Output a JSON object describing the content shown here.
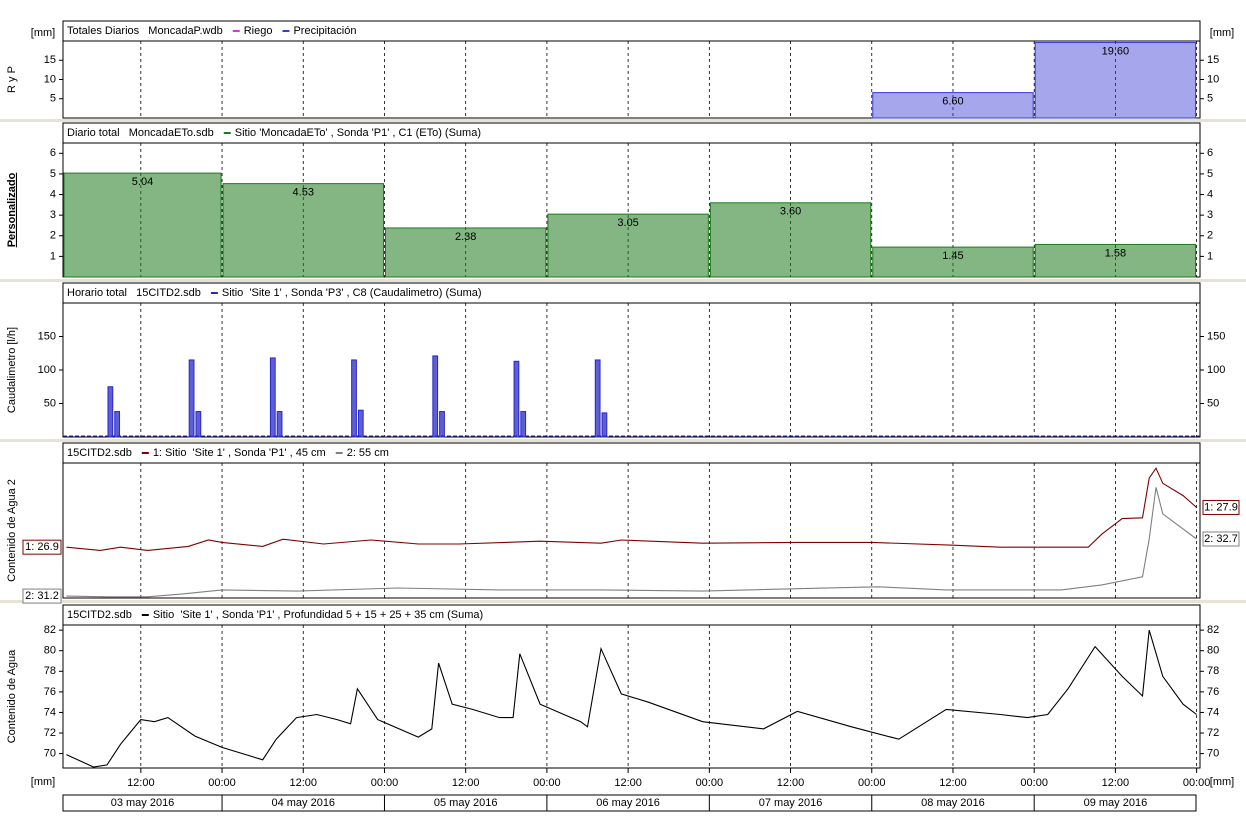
{
  "time_axis": {
    "xlim": [
      "2016-05-03T00:30",
      "2016-05-10T00:30"
    ],
    "xticks": [
      {
        "value": "2016-05-03T12:00",
        "label": "12:00"
      },
      {
        "value": "2016-05-04T00:00",
        "label": "00:00"
      },
      {
        "value": "2016-05-04T12:00",
        "label": "12:00"
      },
      {
        "value": "2016-05-05T00:00",
        "label": "00:00"
      },
      {
        "value": "2016-05-05T12:00",
        "label": "12:00"
      },
      {
        "value": "2016-05-06T00:00",
        "label": "00:00"
      },
      {
        "value": "2016-05-06T12:00",
        "label": "12:00"
      },
      {
        "value": "2016-05-07T00:00",
        "label": "00:00"
      },
      {
        "value": "2016-05-07T12:00",
        "label": "12:00"
      },
      {
        "value": "2016-05-08T00:00",
        "label": "00:00"
      },
      {
        "value": "2016-05-08T12:00",
        "label": "12:00"
      },
      {
        "value": "2016-05-09T00:00",
        "label": "00:00"
      },
      {
        "value": "2016-05-09T12:00",
        "label": "12:00"
      },
      {
        "value": "2016-05-10T00:00",
        "label": "00:00"
      }
    ],
    "days": [
      "03 may 2016",
      "04 may 2016",
      "05 may 2016",
      "06 may 2016",
      "07 may 2016",
      "08 may 2016",
      "09 may 2016"
    ],
    "unit": "[mm]"
  },
  "chart_data": [
    {
      "type": "bar",
      "title": "Totales Diarios   MoncadaP.wdb",
      "ylabel": "R y P",
      "unit": "[mm]",
      "x": [
        "2016-05-03T00:00",
        "2016-05-04T00:00",
        "2016-05-05T00:00",
        "2016-05-06T00:00",
        "2016-05-07T00:00",
        "2016-05-08T00:00",
        "2016-05-09T00:00"
      ],
      "series": [
        {
          "name": "Riego",
          "color": "#e030e0",
          "values": [
            null,
            null,
            null,
            null,
            null,
            null,
            null
          ]
        },
        {
          "name": "Precipitación",
          "color": "#3a3ad8",
          "values": [
            null,
            null,
            null,
            null,
            null,
            6.6,
            19.6
          ],
          "value_labels": [
            null,
            null,
            null,
            null,
            null,
            "6.60",
            "19.60"
          ]
        }
      ],
      "ylim": [
        0,
        20
      ],
      "yticks": [
        5,
        10,
        15
      ]
    },
    {
      "type": "bar",
      "title": "Diario total   MoncadaETo.sdb",
      "ylabel": "Personalizado",
      "x": [
        "2016-05-03T00:00",
        "2016-05-04T00:00",
        "2016-05-05T00:00",
        "2016-05-06T00:00",
        "2016-05-07T00:00",
        "2016-05-08T00:00",
        "2016-05-09T00:00"
      ],
      "series": [
        {
          "name": "Sitio 'MoncadaETo' , Sonda 'P1' , C1 (ETo) (Suma)",
          "color": "#1e7a1e",
          "values": [
            5.04,
            4.53,
            2.38,
            3.05,
            3.6,
            1.45,
            1.58
          ],
          "value_labels": [
            "5.04",
            "4.53",
            "2.38",
            "3.05",
            "3.60",
            "1.45",
            "1.58"
          ]
        }
      ],
      "ylim": [
        0,
        6.5
      ],
      "yticks": [
        1,
        2,
        3,
        4,
        5,
        6
      ]
    },
    {
      "type": "bar",
      "title": "Horario total   15CITD2.sdb",
      "ylabel": "Caudalimetro [l/h]",
      "x": [
        "2016-05-03T07:00",
        "2016-05-03T08:00",
        "2016-05-03T19:00",
        "2016-05-03T20:00",
        "2016-05-04T07:00",
        "2016-05-04T08:00",
        "2016-05-04T19:00",
        "2016-05-04T20:00",
        "2016-05-05T07:00",
        "2016-05-05T08:00",
        "2016-05-05T19:00",
        "2016-05-05T20:00",
        "2016-05-06T07:00",
        "2016-05-06T08:00"
      ],
      "series": [
        {
          "name": "Sitio  'Site 1' , Sonda 'P3' , C8 (Caudalimetro) (Suma)",
          "color": "#2828c8",
          "values": [
            75,
            38,
            115,
            38,
            118,
            38,
            115,
            40,
            121,
            38,
            113,
            38,
            115,
            36
          ]
        }
      ],
      "ylim": [
        0,
        200
      ],
      "yticks": [
        50,
        100,
        150
      ]
    },
    {
      "type": "line",
      "title": "15CITD2.sdb",
      "ylabel": "Contenido de Agua 2",
      "series": [
        {
          "name": "1: Sitio  'Site 1' , Sonda 'P1' , 45 cm",
          "color": "#800000",
          "start_label": "1: 26.9",
          "end_label": "1: 27.9",
          "ylim": [
            25.6,
            29.0
          ],
          "x": [
            "2016-05-03T01:00",
            "2016-05-03T06:00",
            "2016-05-03T09:00",
            "2016-05-03T13:00",
            "2016-05-03T19:00",
            "2016-05-03T22:00",
            "2016-05-04T00:00",
            "2016-05-04T06:00",
            "2016-05-04T09:00",
            "2016-05-04T15:00",
            "2016-05-04T22:00",
            "2016-05-05T05:00",
            "2016-05-05T11:00",
            "2016-05-05T23:00",
            "2016-05-06T08:00",
            "2016-05-06T11:00",
            "2016-05-06T23:00",
            "2016-05-07T13:00",
            "2016-05-08T00:00",
            "2016-05-08T12:00",
            "2016-05-08T19:00",
            "2016-05-09T08:00",
            "2016-05-09T10:00",
            "2016-05-09T13:00",
            "2016-05-09T16:00",
            "2016-05-09T17:00",
            "2016-05-09T18:00",
            "2016-05-09T19:00",
            "2016-05-09T22:00",
            "2016-05-10T00:00"
          ],
          "values": [
            26.88,
            26.8,
            26.88,
            26.8,
            26.9,
            27.06,
            27.0,
            26.9,
            27.08,
            26.96,
            27.06,
            26.96,
            26.96,
            27.03,
            26.98,
            27.06,
            26.98,
            27.0,
            27.0,
            26.93,
            26.88,
            26.88,
            27.21,
            27.6,
            27.62,
            28.62,
            28.87,
            28.49,
            28.18,
            27.88
          ]
        },
        {
          "name": "2: 55 cm",
          "color": "#808080",
          "start_label": "2: 31.2",
          "end_label": "2: 32.7",
          "ylim": [
            31.1,
            34.6
          ],
          "x": [
            "2016-05-03T01:00",
            "2016-05-03T07:00",
            "2016-05-03T13:00",
            "2016-05-03T18:00",
            "2016-05-04T00:00",
            "2016-05-04T11:00",
            "2016-05-05T02:00",
            "2016-05-05T17:00",
            "2016-05-06T08:00",
            "2016-05-06T23:00",
            "2016-05-07T13:00",
            "2016-05-08T01:00",
            "2016-05-08T11:00",
            "2016-05-09T04:00",
            "2016-05-09T10:00",
            "2016-05-09T16:00",
            "2016-05-09T17:00",
            "2016-05-09T18:00",
            "2016-05-09T19:00",
            "2016-05-09T21:00",
            "2016-05-10T00:00"
          ],
          "values": [
            31.15,
            31.13,
            31.13,
            31.2,
            31.31,
            31.28,
            31.36,
            31.31,
            31.31,
            31.28,
            31.34,
            31.39,
            31.31,
            31.31,
            31.44,
            31.65,
            32.63,
            33.97,
            33.28,
            33.02,
            32.63
          ]
        }
      ]
    },
    {
      "type": "line",
      "title": "15CITD2.sdb",
      "ylabel": "Contenido de Agua",
      "series": [
        {
          "name": "Sitio  'Site 1' , Sonda 'P1' , Profundidad 5 + 15 + 25 + 35 cm (Suma)",
          "color": "#000000",
          "x": [
            "2016-05-03T01:00",
            "2016-05-03T05:00",
            "2016-05-03T07:00",
            "2016-05-03T09:00",
            "2016-05-03T12:00",
            "2016-05-03T14:00",
            "2016-05-03T16:00",
            "2016-05-03T20:00",
            "2016-05-04T00:00",
            "2016-05-04T06:00",
            "2016-05-04T08:00",
            "2016-05-04T11:00",
            "2016-05-04T14:00",
            "2016-05-04T17:00",
            "2016-05-04T19:00",
            "2016-05-04T20:00",
            "2016-05-04T23:00",
            "2016-05-05T05:00",
            "2016-05-05T07:00",
            "2016-05-05T08:00",
            "2016-05-05T10:00",
            "2016-05-05T13:00",
            "2016-05-05T17:00",
            "2016-05-05T19:00",
            "2016-05-05T20:00",
            "2016-05-05T23:00",
            "2016-05-06T05:00",
            "2016-05-06T06:00",
            "2016-05-06T08:00",
            "2016-05-06T11:00",
            "2016-05-06T15:00",
            "2016-05-06T23:00",
            "2016-05-07T08:00",
            "2016-05-07T13:00",
            "2016-05-07T21:00",
            "2016-05-08T04:00",
            "2016-05-08T11:00",
            "2016-05-08T19:00",
            "2016-05-08T23:00",
            "2016-05-09T02:00",
            "2016-05-09T05:00",
            "2016-05-09T09:00",
            "2016-05-09T13:00",
            "2016-05-09T16:00",
            "2016-05-09T17:00",
            "2016-05-09T19:00",
            "2016-05-09T22:00",
            "2016-05-10T00:00"
          ],
          "values": [
            69.9,
            68.7,
            68.9,
            70.9,
            73.3,
            73.1,
            73.5,
            71.7,
            70.6,
            69.4,
            71.4,
            73.5,
            73.8,
            73.3,
            72.9,
            76.3,
            73.3,
            71.6,
            72.4,
            78.8,
            74.8,
            74.3,
            73.5,
            73.5,
            79.7,
            74.8,
            73.1,
            72.6,
            80.2,
            75.8,
            75.0,
            73.1,
            72.4,
            74.1,
            72.6,
            71.4,
            74.3,
            73.8,
            73.5,
            73.8,
            76.3,
            80.4,
            77.5,
            75.6,
            82.0,
            77.5,
            74.8,
            73.8
          ]
        }
      ],
      "ylim": [
        68.6,
        82.5
      ],
      "yticks": [
        70,
        72,
        74,
        76,
        78,
        80,
        82
      ]
    }
  ]
}
